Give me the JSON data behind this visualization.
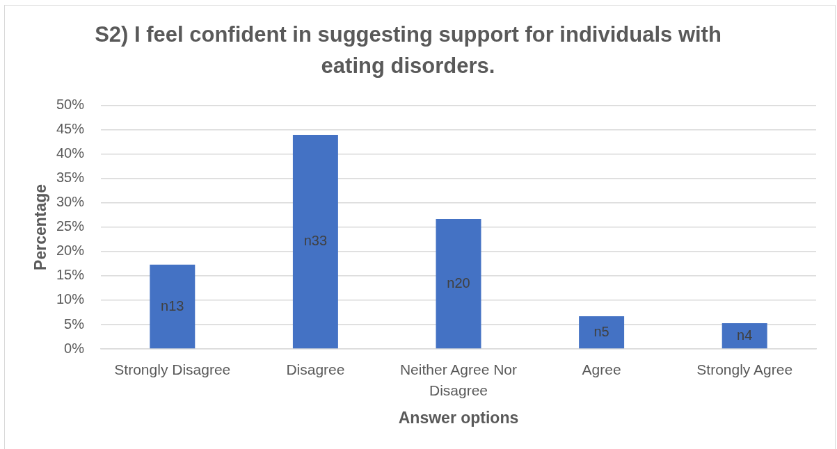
{
  "chart_data": {
    "type": "bar",
    "title": "S2) I feel confident in suggesting support for individuals with eating disorders.",
    "xlabel": "Answer options",
    "ylabel": "Percentage",
    "categories": [
      "Strongly Disagree",
      "Disagree",
      "Neither Agree Nor Disagree",
      "Agree",
      "Strongly Agree"
    ],
    "values": [
      17.3,
      44,
      26.7,
      6.7,
      5.3
    ],
    "color": "#4472c4",
    "value_labels": [
      "n13",
      "n33",
      "n20",
      "n5",
      "n4"
    ],
    "ylim": [
      0,
      50
    ],
    "yticks": [
      {
        "value": 0,
        "label": "0%"
      },
      {
        "value": 5,
        "label": "5%"
      },
      {
        "value": 10,
        "label": "10%"
      },
      {
        "value": 15,
        "label": "15%"
      },
      {
        "value": 20,
        "label": "20%"
      },
      {
        "value": 25,
        "label": "25%"
      },
      {
        "value": 30,
        "label": "30%"
      },
      {
        "value": 35,
        "label": "35%"
      },
      {
        "value": 40,
        "label": "40%"
      },
      {
        "value": 45,
        "label": "45%"
      },
      {
        "value": 50,
        "label": "50%"
      }
    ],
    "grid": "y"
  }
}
